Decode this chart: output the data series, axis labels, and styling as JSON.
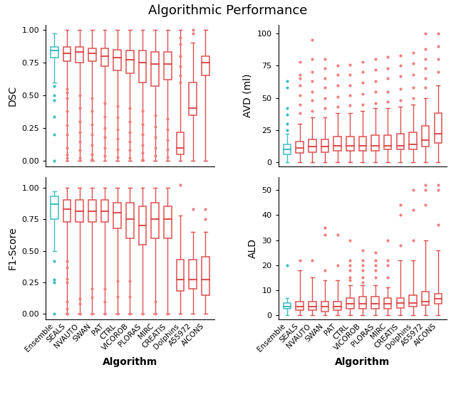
{
  "title": "Algorithmic Performance",
  "algorithms": [
    "Ensemble",
    "SEALS",
    "NVAUTO",
    "SWAN",
    "PAT",
    "CTRL",
    "VICOROB",
    "PLORAS",
    "MIRC",
    "CREATIS",
    "Dolphins",
    "A55972",
    "AICONS"
  ],
  "ensemble_color": "#3dbec2",
  "algo_color": "#f07f7f",
  "algo_edge_color": "#e05050",
  "background_color": "#ffffff",
  "dsc": {
    "ylabel": "DSC",
    "ylim": [
      -0.04,
      1.04
    ],
    "yticks": [
      0.0,
      0.25,
      0.5,
      0.75,
      1.0
    ],
    "boxes": [
      {
        "q1": 0.79,
        "median": 0.84,
        "q3": 0.87,
        "whislo": 0.6,
        "whishi": 0.97,
        "fliers_low": [
          0.57,
          0.5,
          0.46,
          0.34,
          0.2,
          0.0
        ],
        "fliers_high": []
      },
      {
        "q1": 0.76,
        "median": 0.82,
        "q3": 0.87,
        "whislo": 0.0,
        "whishi": 1.0,
        "fliers_low": [
          0.55,
          0.52,
          0.48,
          0.38,
          0.27,
          0.2,
          0.1,
          0.05,
          0.02
        ],
        "fliers_high": []
      },
      {
        "q1": 0.75,
        "median": 0.83,
        "q3": 0.87,
        "whislo": 0.0,
        "whishi": 1.0,
        "fliers_low": [
          0.5,
          0.4,
          0.3,
          0.22,
          0.15,
          0.08,
          0.02
        ],
        "fliers_high": []
      },
      {
        "q1": 0.76,
        "median": 0.82,
        "q3": 0.86,
        "whislo": 0.0,
        "whishi": 1.0,
        "fliers_low": [
          0.48,
          0.38,
          0.28,
          0.2,
          0.12,
          0.05,
          0.01
        ],
        "fliers_high": []
      },
      {
        "q1": 0.72,
        "median": 0.8,
        "q3": 0.86,
        "whislo": 0.0,
        "whishi": 1.0,
        "fliers_low": [
          0.44,
          0.34,
          0.25,
          0.18,
          0.1,
          0.04
        ],
        "fliers_high": []
      },
      {
        "q1": 0.69,
        "median": 0.79,
        "q3": 0.85,
        "whislo": 0.0,
        "whishi": 1.0,
        "fliers_low": [
          0.42,
          0.33,
          0.24,
          0.17,
          0.09,
          0.03
        ],
        "fliers_high": []
      },
      {
        "q1": 0.67,
        "median": 0.77,
        "q3": 0.84,
        "whislo": 0.0,
        "whishi": 1.0,
        "fliers_low": [
          0.4,
          0.3,
          0.22,
          0.15,
          0.08,
          0.02
        ],
        "fliers_high": []
      },
      {
        "q1": 0.6,
        "median": 0.75,
        "q3": 0.84,
        "whislo": 0.0,
        "whishi": 1.0,
        "fliers_low": [
          0.38,
          0.28,
          0.2,
          0.12,
          0.06,
          0.01
        ],
        "fliers_high": []
      },
      {
        "q1": 0.57,
        "median": 0.74,
        "q3": 0.83,
        "whislo": 0.0,
        "whishi": 1.0,
        "fliers_low": [
          0.35,
          0.26,
          0.18,
          0.1,
          0.04
        ],
        "fliers_high": []
      },
      {
        "q1": 0.62,
        "median": 0.74,
        "q3": 0.83,
        "whislo": 0.0,
        "whishi": 1.0,
        "fliers_low": [
          0.32,
          0.24,
          0.16,
          0.09,
          0.03
        ],
        "fliers_high": []
      },
      {
        "q1": 0.05,
        "median": 0.1,
        "q3": 0.22,
        "whislo": 0.0,
        "whishi": 1.0,
        "fliers_low": [],
        "fliers_high": [
          0.6,
          0.65,
          0.72,
          0.8,
          0.89,
          0.94
        ]
      },
      {
        "q1": 0.35,
        "median": 0.4,
        "q3": 0.6,
        "whislo": 0.0,
        "whishi": 0.9,
        "fliers_low": [],
        "fliers_high": [
          0.97,
          1.0
        ]
      },
      {
        "q1": 0.65,
        "median": 0.75,
        "q3": 0.8,
        "whislo": 0.0,
        "whishi": 1.0,
        "fliers_low": [],
        "fliers_high": []
      }
    ]
  },
  "f1": {
    "ylabel": "F1-Score",
    "ylim": [
      -0.04,
      1.08
    ],
    "yticks": [
      0.0,
      0.25,
      0.5,
      0.75,
      1.0
    ],
    "boxes": [
      {
        "q1": 0.75,
        "median": 0.87,
        "q3": 0.93,
        "whislo": 0.5,
        "whishi": 0.97,
        "fliers_low": [
          0.42,
          0.27,
          0.25,
          0.0
        ],
        "fliers_high": []
      },
      {
        "q1": 0.73,
        "median": 0.83,
        "q3": 0.9,
        "whislo": 0.0,
        "whishi": 1.0,
        "fliers_low": [
          0.42,
          0.37,
          0.28,
          0.25,
          0.1,
          0.04,
          0.0
        ],
        "fliers_high": []
      },
      {
        "q1": 0.73,
        "median": 0.81,
        "q3": 0.9,
        "whislo": 0.0,
        "whishi": 1.0,
        "fliers_low": [
          0.12,
          0.08,
          0.0
        ],
        "fliers_high": []
      },
      {
        "q1": 0.73,
        "median": 0.81,
        "q3": 0.9,
        "whislo": 0.0,
        "whishi": 1.0,
        "fliers_low": [
          0.2,
          0.13,
          0.0
        ],
        "fliers_high": []
      },
      {
        "q1": 0.73,
        "median": 0.81,
        "q3": 0.9,
        "whislo": 0.0,
        "whishi": 1.0,
        "fliers_low": [
          0.2,
          0.1,
          0.0
        ],
        "fliers_high": []
      },
      {
        "q1": 0.68,
        "median": 0.8,
        "q3": 0.88,
        "whislo": 0.0,
        "whishi": 1.0,
        "fliers_low": [
          0.26,
          0.14,
          0.0
        ],
        "fliers_high": []
      },
      {
        "q1": 0.6,
        "median": 0.75,
        "q3": 0.88,
        "whislo": 0.0,
        "whishi": 1.0,
        "fliers_low": [
          0.26,
          0.14,
          0.0
        ],
        "fliers_high": []
      },
      {
        "q1": 0.55,
        "median": 0.7,
        "q3": 0.85,
        "whislo": 0.0,
        "whishi": 1.0,
        "fliers_low": [
          0.0
        ],
        "fliers_high": []
      },
      {
        "q1": 0.6,
        "median": 0.75,
        "q3": 0.88,
        "whislo": 0.0,
        "whishi": 1.0,
        "fliers_low": [
          0.1,
          0.0
        ],
        "fliers_high": []
      },
      {
        "q1": 0.6,
        "median": 0.75,
        "q3": 0.85,
        "whislo": 0.0,
        "whishi": 1.0,
        "fliers_low": [
          0.0
        ],
        "fliers_high": []
      },
      {
        "q1": 0.18,
        "median": 0.27,
        "q3": 0.43,
        "whislo": 0.0,
        "whishi": 0.78,
        "fliers_low": [],
        "fliers_high": [
          1.02
        ]
      },
      {
        "q1": 0.2,
        "median": 0.27,
        "q3": 0.43,
        "whislo": 0.0,
        "whishi": 0.65,
        "fliers_low": [],
        "fliers_high": [
          0.83
        ]
      },
      {
        "q1": 0.15,
        "median": 0.27,
        "q3": 0.45,
        "whislo": 0.0,
        "whishi": 0.65,
        "fliers_low": [],
        "fliers_high": [
          0.75,
          0.83
        ]
      }
    ]
  },
  "avd": {
    "ylabel": "AVD (ml)",
    "ylim": [
      -3,
      107
    ],
    "yticks": [
      0,
      25,
      50,
      75,
      100
    ],
    "boxes": [
      {
        "q1": 6,
        "median": 10,
        "q3": 14,
        "whislo": 0,
        "whishi": 22,
        "fliers_low": [],
        "fliers_high": [
          25,
          30,
          37,
          42,
          58,
          63
        ]
      },
      {
        "q1": 7,
        "median": 11,
        "q3": 16,
        "whislo": 0,
        "whishi": 30,
        "fliers_low": [],
        "fliers_high": [
          38,
          45,
          52,
          60,
          65,
          68,
          78
        ]
      },
      {
        "q1": 8,
        "median": 12,
        "q3": 18,
        "whislo": 0,
        "whishi": 35,
        "fliers_low": [],
        "fliers_high": [
          40,
          48,
          55,
          63,
          70,
          80,
          95
        ]
      },
      {
        "q1": 8,
        "median": 12,
        "q3": 18,
        "whislo": 0,
        "whishi": 35,
        "fliers_low": [],
        "fliers_high": [
          42,
          50,
          58,
          65,
          73,
          80
        ]
      },
      {
        "q1": 9,
        "median": 13,
        "q3": 20,
        "whislo": 0,
        "whishi": 38,
        "fliers_low": [],
        "fliers_high": [
          43,
          51,
          60,
          68,
          75
        ]
      },
      {
        "q1": 9,
        "median": 13,
        "q3": 20,
        "whislo": 0,
        "whishi": 38,
        "fliers_low": [],
        "fliers_high": [
          44,
          52,
          60,
          68,
          76
        ]
      },
      {
        "q1": 9,
        "median": 13,
        "q3": 20,
        "whislo": 0,
        "whishi": 40,
        "fliers_low": [],
        "fliers_high": [
          45,
          53,
          62,
          70,
          78
        ]
      },
      {
        "q1": 9,
        "median": 13,
        "q3": 21,
        "whislo": 0,
        "whishi": 42,
        "fliers_low": [],
        "fliers_high": [
          46,
          55,
          63,
          72,
          80
        ]
      },
      {
        "q1": 10,
        "median": 13,
        "q3": 21,
        "whislo": 0,
        "whishi": 42,
        "fliers_low": [],
        "fliers_high": [
          47,
          55,
          65,
          73,
          82
        ]
      },
      {
        "q1": 10,
        "median": 13,
        "q3": 22,
        "whislo": 0,
        "whishi": 43,
        "fliers_low": [],
        "fliers_high": [
          48,
          57,
          67,
          75,
          83
        ]
      },
      {
        "q1": 10,
        "median": 14,
        "q3": 23,
        "whislo": 0,
        "whishi": 45,
        "fliers_low": [],
        "fliers_high": [
          50,
          58,
          68,
          77,
          85
        ]
      },
      {
        "q1": 12,
        "median": 17,
        "q3": 28,
        "whislo": 0,
        "whishi": 50,
        "fliers_low": [],
        "fliers_high": [
          58,
          65,
          73,
          80,
          88,
          100
        ]
      },
      {
        "q1": 15,
        "median": 22,
        "q3": 38,
        "whislo": 0,
        "whishi": 60,
        "fliers_low": [],
        "fliers_high": [
          70,
          80,
          90,
          100
        ]
      }
    ]
  },
  "ald": {
    "ylabel": "ALD",
    "ylim": [
      -1.5,
      55
    ],
    "yticks": [
      0,
      10,
      20,
      30,
      40,
      50
    ],
    "boxes": [
      {
        "q1": 2.5,
        "median": 3.5,
        "q3": 5.0,
        "whislo": 0,
        "whishi": 7,
        "fliers_low": [],
        "fliers_high": [
          20
        ]
      },
      {
        "q1": 2.0,
        "median": 3.5,
        "q3": 5.5,
        "whislo": 0,
        "whishi": 18,
        "fliers_low": [],
        "fliers_high": [
          22
        ]
      },
      {
        "q1": 2.0,
        "median": 3.5,
        "q3": 5.5,
        "whislo": 0,
        "whishi": 15,
        "fliers_low": [],
        "fliers_high": [
          22
        ]
      },
      {
        "q1": 1.5,
        "median": 3.5,
        "q3": 5.5,
        "whislo": 0,
        "whishi": 14,
        "fliers_low": [],
        "fliers_high": [
          18,
          32,
          35
        ]
      },
      {
        "q1": 2.0,
        "median": 3.5,
        "q3": 5.5,
        "whislo": 0,
        "whishi": 14,
        "fliers_low": [],
        "fliers_high": [
          20,
          32
        ]
      },
      {
        "q1": 2.5,
        "median": 4.5,
        "q3": 7.0,
        "whislo": 0,
        "whishi": 12,
        "fliers_low": [],
        "fliers_high": [
          14,
          15,
          18,
          20,
          22,
          30
        ]
      },
      {
        "q1": 2.5,
        "median": 4.5,
        "q3": 7.5,
        "whislo": 0,
        "whishi": 12,
        "fliers_low": [],
        "fliers_high": [
          13,
          15,
          18,
          20,
          22,
          26
        ]
      },
      {
        "q1": 2.5,
        "median": 4.5,
        "q3": 7.5,
        "whislo": 0,
        "whishi": 12,
        "fliers_low": [],
        "fliers_high": [
          15,
          18,
          20,
          22,
          25
        ]
      },
      {
        "q1": 2.5,
        "median": 4.5,
        "q3": 7.0,
        "whislo": 0,
        "whishi": 11,
        "fliers_low": [],
        "fliers_high": [
          15,
          20,
          22,
          30
        ]
      },
      {
        "q1": 3.0,
        "median": 5.0,
        "q3": 7.0,
        "whislo": 0,
        "whishi": 22,
        "fliers_low": [],
        "fliers_high": [
          28,
          40,
          44
        ]
      },
      {
        "q1": 3.5,
        "median": 5.0,
        "q3": 8.0,
        "whislo": 0,
        "whishi": 22,
        "fliers_low": [],
        "fliers_high": [
          30,
          42,
          50
        ]
      },
      {
        "q1": 4.0,
        "median": 5.5,
        "q3": 9.5,
        "whislo": 0,
        "whishi": 30,
        "fliers_low": [],
        "fliers_high": [
          44,
          50,
          52
        ]
      },
      {
        "q1": 4.5,
        "median": 6.5,
        "q3": 8.5,
        "whislo": 0,
        "whishi": 26,
        "fliers_low": [],
        "fliers_high": [
          36,
          50,
          52
        ]
      }
    ]
  },
  "figsize": [
    6.4,
    5.75
  ],
  "dpi": 100
}
